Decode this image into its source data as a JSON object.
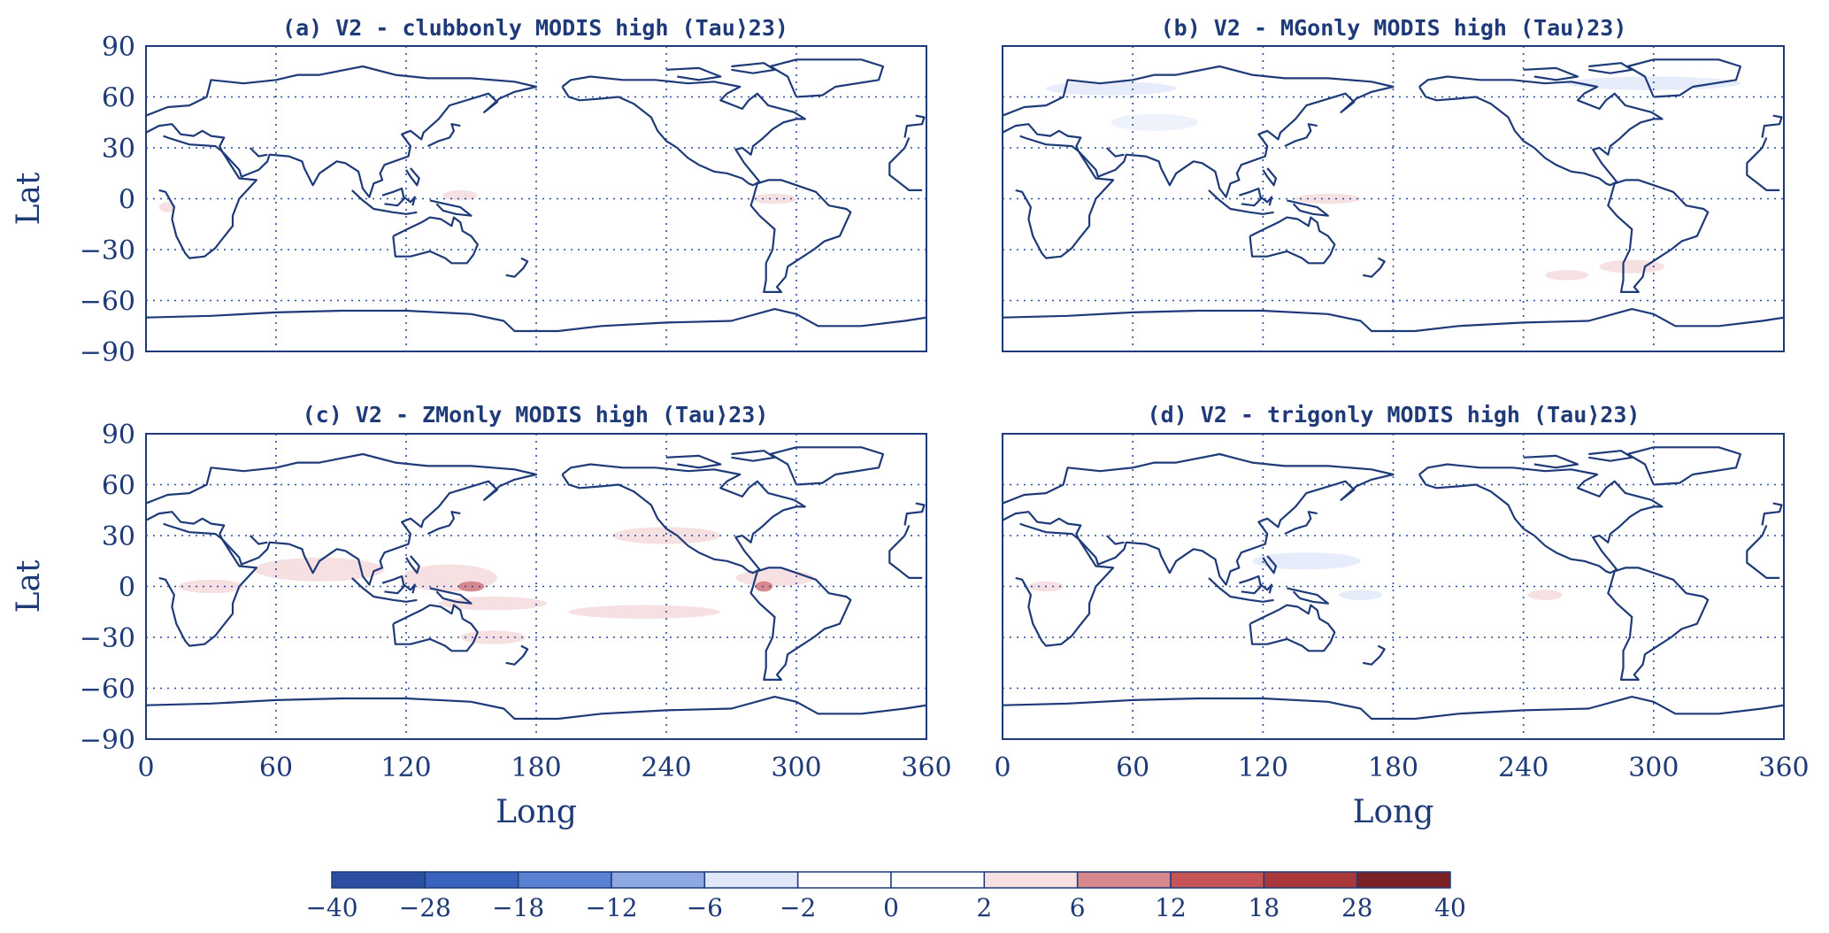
{
  "panels": [
    {
      "title": "(a) V2 - clubbonly      MODIS high (Tau>23)"
    },
    {
      "title": "(b) V2 - MGonly      MODIS high (Tau>23)"
    },
    {
      "title": "(c) V2 - ZMonly      MODIS high (Tau>23)"
    },
    {
      "title": "(d) V2 - trigonly      MODIS high (Tau>23)"
    }
  ],
  "axes": {
    "xlabel": "Long",
    "ylabel": "Lat",
    "x_ticks": [
      "0",
      "60",
      "120",
      "180",
      "240",
      "300",
      "360"
    ],
    "y_ticks": [
      "90",
      "60",
      "30",
      "0",
      "−30",
      "−60",
      "−90"
    ],
    "xlim": [
      0,
      360
    ],
    "ylim": [
      -90,
      90
    ]
  },
  "colorbar": {
    "tick_labels": [
      "−40",
      "−28",
      "−18",
      "−12",
      "−6",
      "−2",
      "0",
      "2",
      "6",
      "12",
      "18",
      "28",
      "40"
    ],
    "bins": [
      {
        "range": "-40 to -28",
        "color": "#2a4fa0"
      },
      {
        "range": "-28 to -18",
        "color": "#3a63c0"
      },
      {
        "range": "-18 to -12",
        "color": "#5a82d4"
      },
      {
        "range": "-12 to -6",
        "color": "#8fa9e2"
      },
      {
        "range": "-6 to -2",
        "color": "#dfe7f8"
      },
      {
        "range": "-2 to 0",
        "color": "#ffffff"
      },
      {
        "range": "0 to 2",
        "color": "#ffffff"
      },
      {
        "range": "2 to 6",
        "color": "#f6e0e2"
      },
      {
        "range": "6 to 12",
        "color": "#d6888c"
      },
      {
        "range": "12 to 18",
        "color": "#c65455"
      },
      {
        "range": "18 to 28",
        "color": "#a8383a"
      },
      {
        "range": "28 to 40",
        "color": "#7a2226"
      }
    ]
  }
}
